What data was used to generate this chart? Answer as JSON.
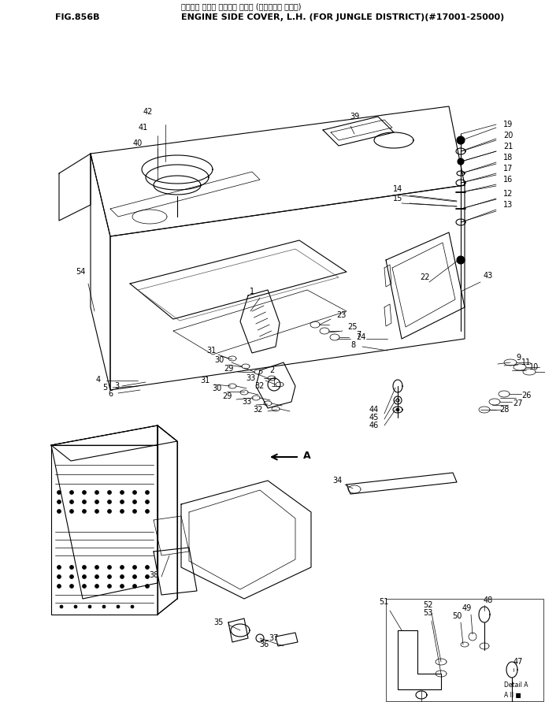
{
  "title_japanese": "エンジン サイド カバー、 ヒダリ (ジャングル ショウ)",
  "title_english": "ENGINE SIDE COVER, L.H. (FOR JUNGLE DISTRICT)(#17001-25000)",
  "fig_label": "FIG.856B",
  "bg_color": "#ffffff",
  "line_color": "#000000",
  "fig_width": 6.92,
  "fig_height": 8.91,
  "dpi": 100
}
